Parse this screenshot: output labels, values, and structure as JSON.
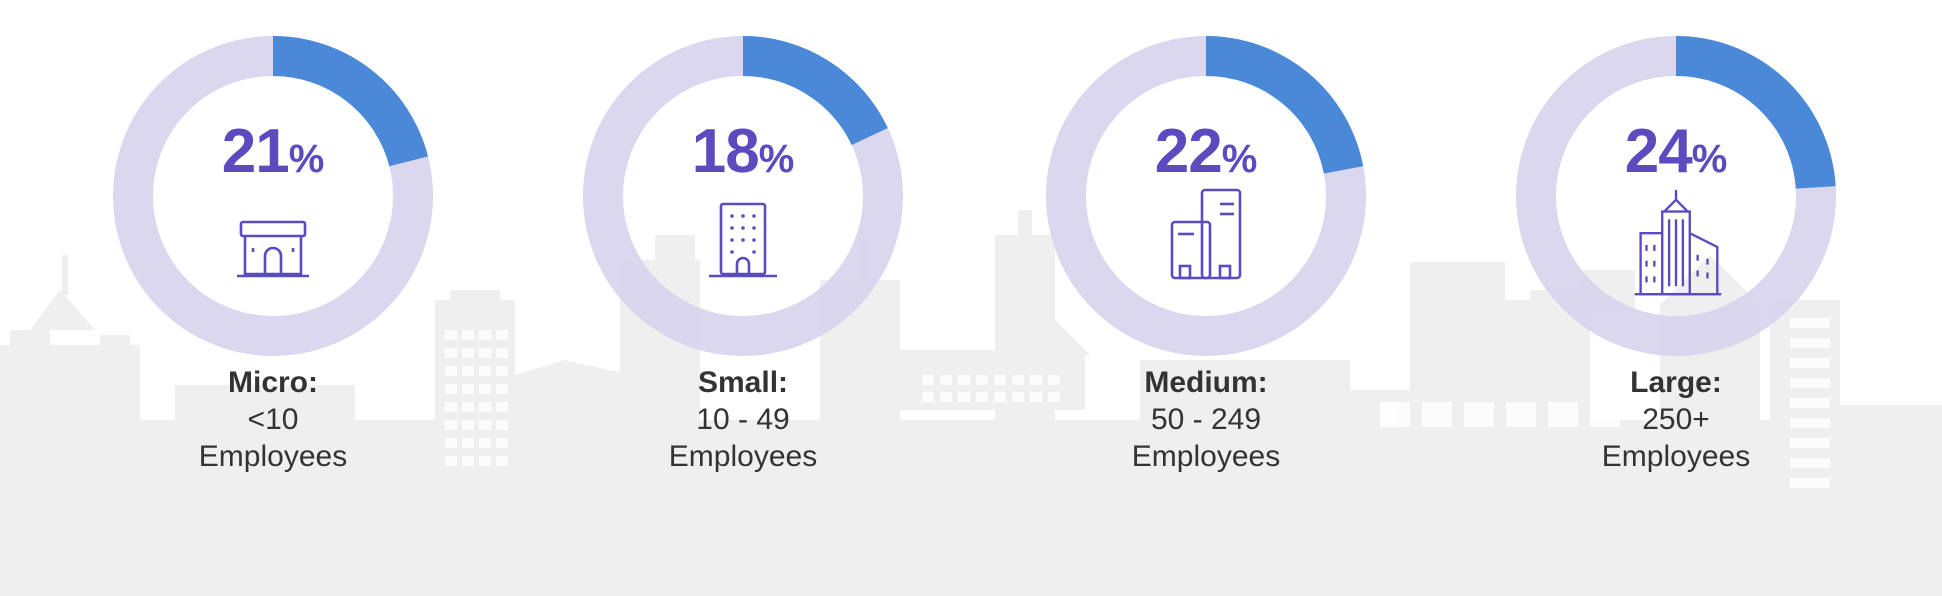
{
  "chart_data": {
    "type": "pie",
    "variant": "donut",
    "unit": "%",
    "categories": [
      "Micro:",
      "Small:",
      "Medium:",
      "Large:"
    ],
    "values": [
      21,
      18,
      22,
      24
    ],
    "colors": {
      "track": "#d6d3ec",
      "segment_start": "#6a52c9",
      "segment_end": "#4a88d8",
      "text_accent": "#5b4bbf",
      "label_text": "#333333",
      "skyline": "#efefef"
    }
  },
  "cards": [
    {
      "value": "21",
      "unit": "%",
      "title": "Micro:",
      "range": "<10",
      "sub": "Employees",
      "icon": "storefront-icon"
    },
    {
      "value": "18",
      "unit": "%",
      "title": "Small:",
      "range": "10 - 49",
      "sub": "Employees",
      "icon": "office-building-icon"
    },
    {
      "value": "22",
      "unit": "%",
      "title": "Medium:",
      "range": "50 - 249",
      "sub": "Employees",
      "icon": "twin-towers-icon"
    },
    {
      "value": "24",
      "unit": "%",
      "title": "Large:",
      "range": "250+",
      "sub": "Employees",
      "icon": "corporate-complex-icon"
    }
  ]
}
